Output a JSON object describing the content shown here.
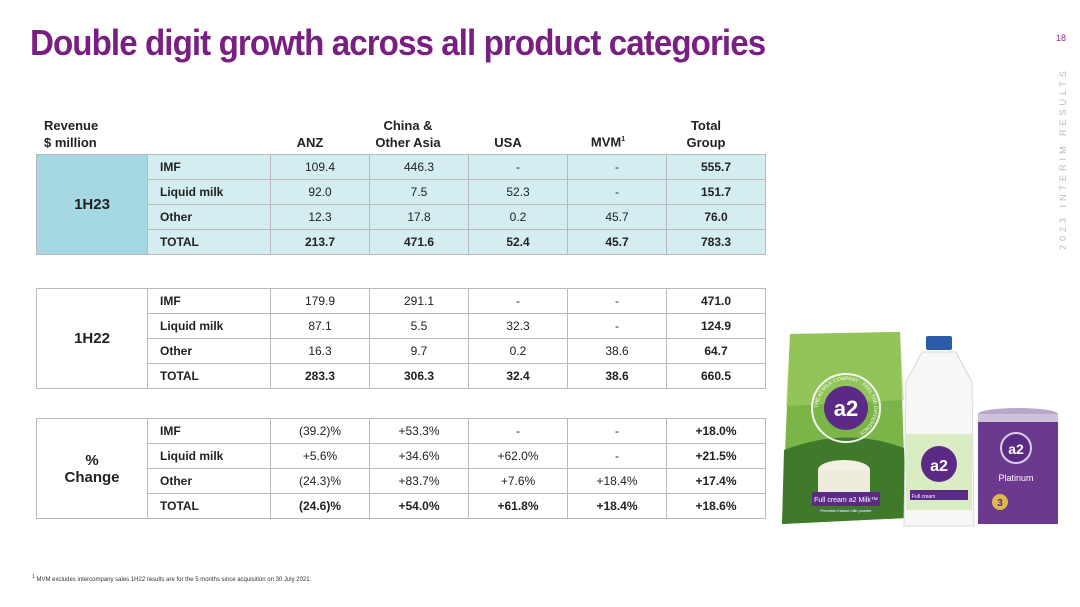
{
  "title": "Double digit growth across all product categories",
  "page_number": "18",
  "side_label": "2023 INTERIM RESULTS",
  "headers": {
    "revenue": [
      "Revenue",
      "$ million"
    ],
    "anz": "ANZ",
    "china": [
      "China &",
      "Other Asia"
    ],
    "usa": "USA",
    "mvm": "MVM",
    "mvm_note": "1",
    "total": [
      "Total",
      "Group"
    ]
  },
  "blocks": [
    {
      "period": "1H23",
      "rows": [
        {
          "cat": "IMF",
          "anz": "109.4",
          "china": "446.3",
          "usa": "-",
          "mvm": "-",
          "total": "555.7"
        },
        {
          "cat": "Liquid milk",
          "anz": "92.0",
          "china": "7.5",
          "usa": "52.3",
          "mvm": "-",
          "total": "151.7"
        },
        {
          "cat": "Other",
          "anz": "12.3",
          "china": "17.8",
          "usa": "0.2",
          "mvm": "45.7",
          "total": "76.0"
        },
        {
          "cat": "TOTAL",
          "anz": "213.7",
          "china": "471.6",
          "usa": "52.4",
          "mvm": "45.7",
          "total": "783.3"
        }
      ]
    },
    {
      "period": "1H22",
      "rows": [
        {
          "cat": "IMF",
          "anz": "179.9",
          "china": "291.1",
          "usa": "-",
          "mvm": "-",
          "total": "471.0"
        },
        {
          "cat": "Liquid milk",
          "anz": "87.1",
          "china": "5.5",
          "usa": "32.3",
          "mvm": "-",
          "total": "124.9"
        },
        {
          "cat": "Other",
          "anz": "16.3",
          "china": "9.7",
          "usa": "0.2",
          "mvm": "38.6",
          "total": "64.7"
        },
        {
          "cat": "TOTAL",
          "anz": "283.3",
          "china": "306.3",
          "usa": "32.4",
          "mvm": "38.6",
          "total": "660.5"
        }
      ]
    },
    {
      "period": [
        "%",
        "Change"
      ],
      "rows": [
        {
          "cat": "IMF",
          "anz": "(39.2)%",
          "china": "+53.3%",
          "usa": "-",
          "mvm": "-",
          "total": "+18.0%"
        },
        {
          "cat": "Liquid milk",
          "anz": "+5.6%",
          "china": "+34.6%",
          "usa": "+62.0%",
          "mvm": "-",
          "total": "+21.5%"
        },
        {
          "cat": "Other",
          "anz": "(24.3)%",
          "china": "+83.7%",
          "usa": "+7.6%",
          "mvm": "+18.4%",
          "total": "+17.4%"
        },
        {
          "cat": "TOTAL",
          "anz": "(24.6)%",
          "china": "+54.0%",
          "usa": "+61.8%",
          "mvm": "+18.4%",
          "total": "+18.6%"
        }
      ]
    }
  ],
  "footnote": {
    "mark": "1",
    "text": "MVM excludes intercompany sales 1H22 results are for the 5 months since acquisition on 30 July 2021."
  },
  "products": {
    "bag_brand": "a2",
    "bag_ring_text": "THE a2 MILK COMPANY · FEEL THE DIFFERENCE ·",
    "bag_label": "Full cream a2 Milk",
    "bag_label_tm": "™",
    "bag_sublabel": "Premium instant milk powder",
    "bottle_brand": "a2",
    "bottle_label": "Full cream",
    "tin_brand": "a2",
    "tin_label": "Platinum",
    "tin_stage": "3",
    "colors": {
      "title": "#7a1f82",
      "table_1h23_cells": "#d3edf1",
      "table_1h23_period": "#a6d8e4",
      "bag_green": "#6aa83a",
      "a2_purple": "#5b2a86"
    }
  }
}
